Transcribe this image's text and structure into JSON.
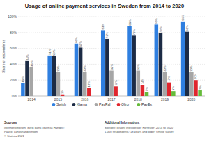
{
  "chart_data": {
    "type": "bar",
    "title": "Usage of online payment services in Sweden from 2014 to 2020",
    "y_label": "Share of respondents",
    "categories": [
      "2014",
      "2015",
      "2016",
      "2017",
      "2018",
      "2019",
      "2020"
    ],
    "series": [
      {
        "name": "Swish",
        "color": "#2f7fe0",
        "values": [
          16,
          51,
          66,
          83,
          88,
          90,
          94
        ],
        "value_labels": [
          "16%",
          "51%",
          "66%",
          "83%",
          "88%",
          "90%",
          "94%"
        ]
      },
      {
        "name": "Klarna",
        "color": "#1c2b45",
        "values": [
          44,
          50,
          61,
          72,
          76,
          79,
          81
        ],
        "value_labels": [
          "44%",
          "50%",
          "61%",
          "72%",
          "76%",
          "79%",
          "81%"
        ]
      },
      {
        "name": "PayPal",
        "color": "#a6a6a6",
        "values": [
          36,
          30,
          30,
          32,
          32,
          30,
          30
        ],
        "value_labels": [
          "36%",
          "30%",
          "30%",
          "32%",
          "32%",
          "30%",
          "30%"
        ]
      },
      {
        "name": "Qliro",
        "color": "#e0262e",
        "values": [
          null,
          2,
          10,
          12,
          14,
          17,
          20
        ],
        "value_labels": [
          null,
          "2%",
          "10%",
          "12%",
          "14%",
          "17%",
          "20%"
        ]
      },
      {
        "name": "PayEx",
        "color": "#66bb3b",
        "values": [
          null,
          null,
          null,
          null,
          5,
          6,
          7
        ],
        "value_labels": [
          null,
          null,
          null,
          null,
          "5%",
          "6%",
          "7%"
        ]
      }
    ],
    "ylim": [
      0,
      100
    ],
    "yticks": [
      {
        "value": 0,
        "label": "0%"
      },
      {
        "value": 20,
        "label": "20%"
      },
      {
        "value": 40,
        "label": "40%"
      },
      {
        "value": 60,
        "label": "60%"
      },
      {
        "value": 80,
        "label": "80%"
      },
      {
        "value": 100,
        "label": "100%"
      }
    ],
    "grid": true,
    "legend": "bottom",
    "data_labels": true,
    "source_title": "Sources",
    "source": [
      "Internetstiftelsen; SWB Bank (Svensk Handel);",
      "Payex; Landshandelingen",
      "© Statista 2021"
    ],
    "info_title": "Additional Information:",
    "info": [
      "Sweden; Insight Intelligence; Forrester; 2014 to 2020;",
      "1,000 respondents; 18 years and older; Online survey"
    ]
  }
}
